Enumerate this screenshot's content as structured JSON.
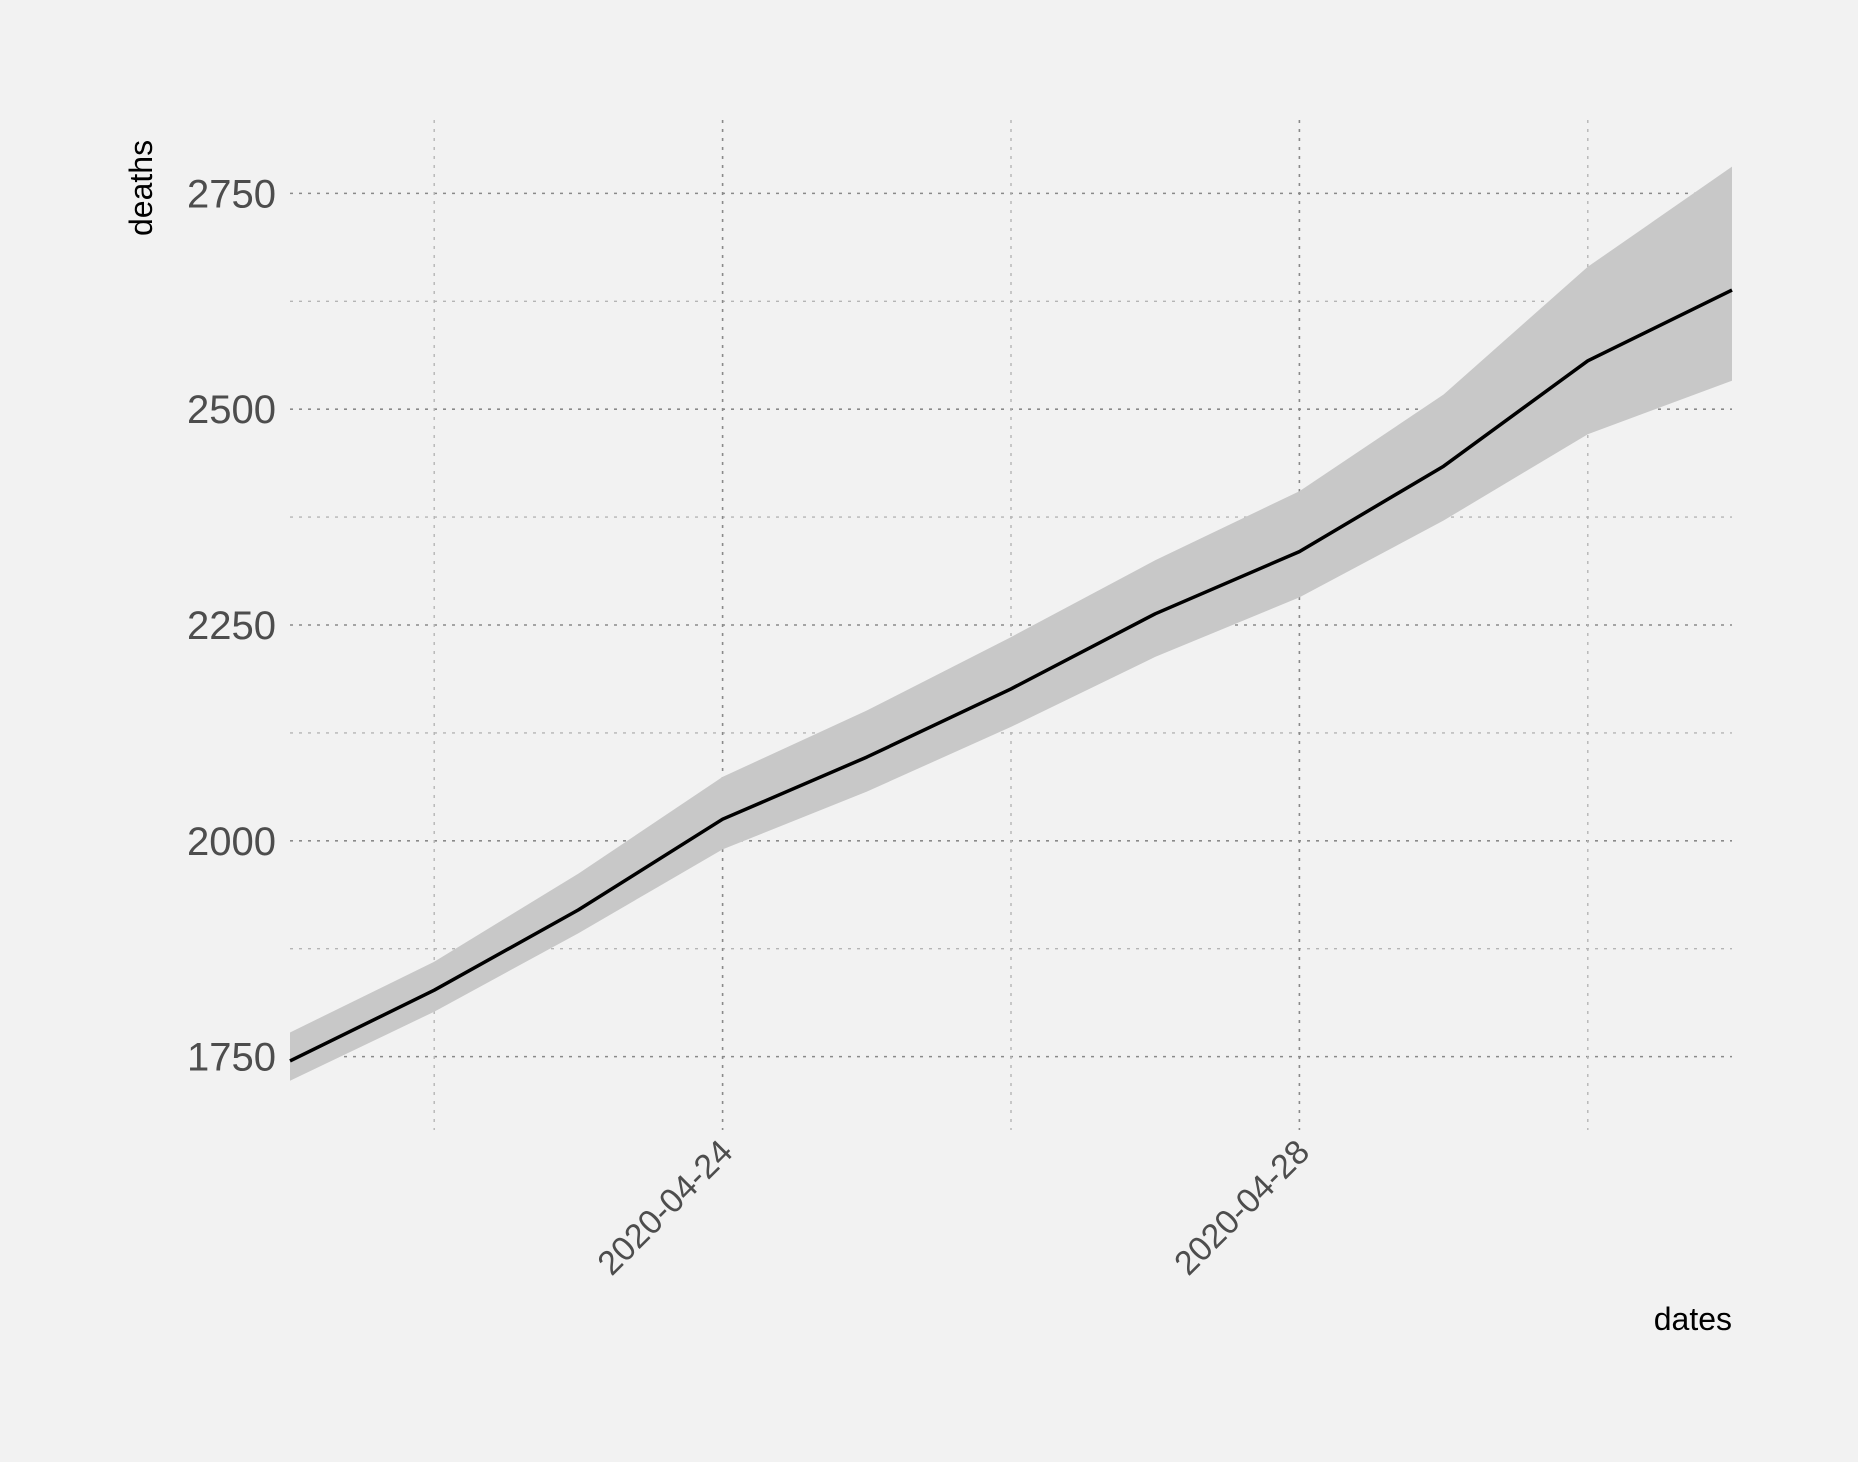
{
  "chart_data": {
    "type": "line",
    "title": "",
    "xlabel": "dates",
    "ylabel": "deaths",
    "x": [
      "2020-04-21",
      "2020-04-22",
      "2020-04-23",
      "2020-04-24",
      "2020-04-25",
      "2020-04-26",
      "2020-04-27",
      "2020-04-28",
      "2020-04-29",
      "2020-04-30",
      "2020-05-01"
    ],
    "series": [
      {
        "values": [
          1745,
          1827,
          1920,
          2025,
          2097,
          2176,
          2263,
          2335,
          2434,
          2556,
          2638
        ],
        "band_lower": [
          1722,
          1802,
          1893,
          1990,
          2057,
          2132,
          2213,
          2282,
          2371,
          2471,
          2533
        ],
        "band_upper": [
          1778,
          1860,
          1962,
          2074,
          2151,
          2236,
          2325,
          2405,
          2517,
          2665,
          2781
        ],
        "line_color": "#000000",
        "band_color": "#c8c8c8"
      }
    ],
    "ylim": [
      1665,
      2835
    ],
    "xlim": [
      "2020-04-21",
      "2020-05-01"
    ],
    "y_ticks": [
      "1750",
      "2000",
      "2250",
      "2500",
      "2750"
    ],
    "y_minor_ticks": [
      1875,
      2125,
      2375,
      2625
    ],
    "x_ticks": [
      "2020-04-24",
      "2020-04-28"
    ],
    "x_minor_ticks": [
      "2020-04-22",
      "2020-04-26",
      "2020-04-30"
    ],
    "grid": true,
    "legend": "none",
    "background_color": "#f2f2f2"
  }
}
